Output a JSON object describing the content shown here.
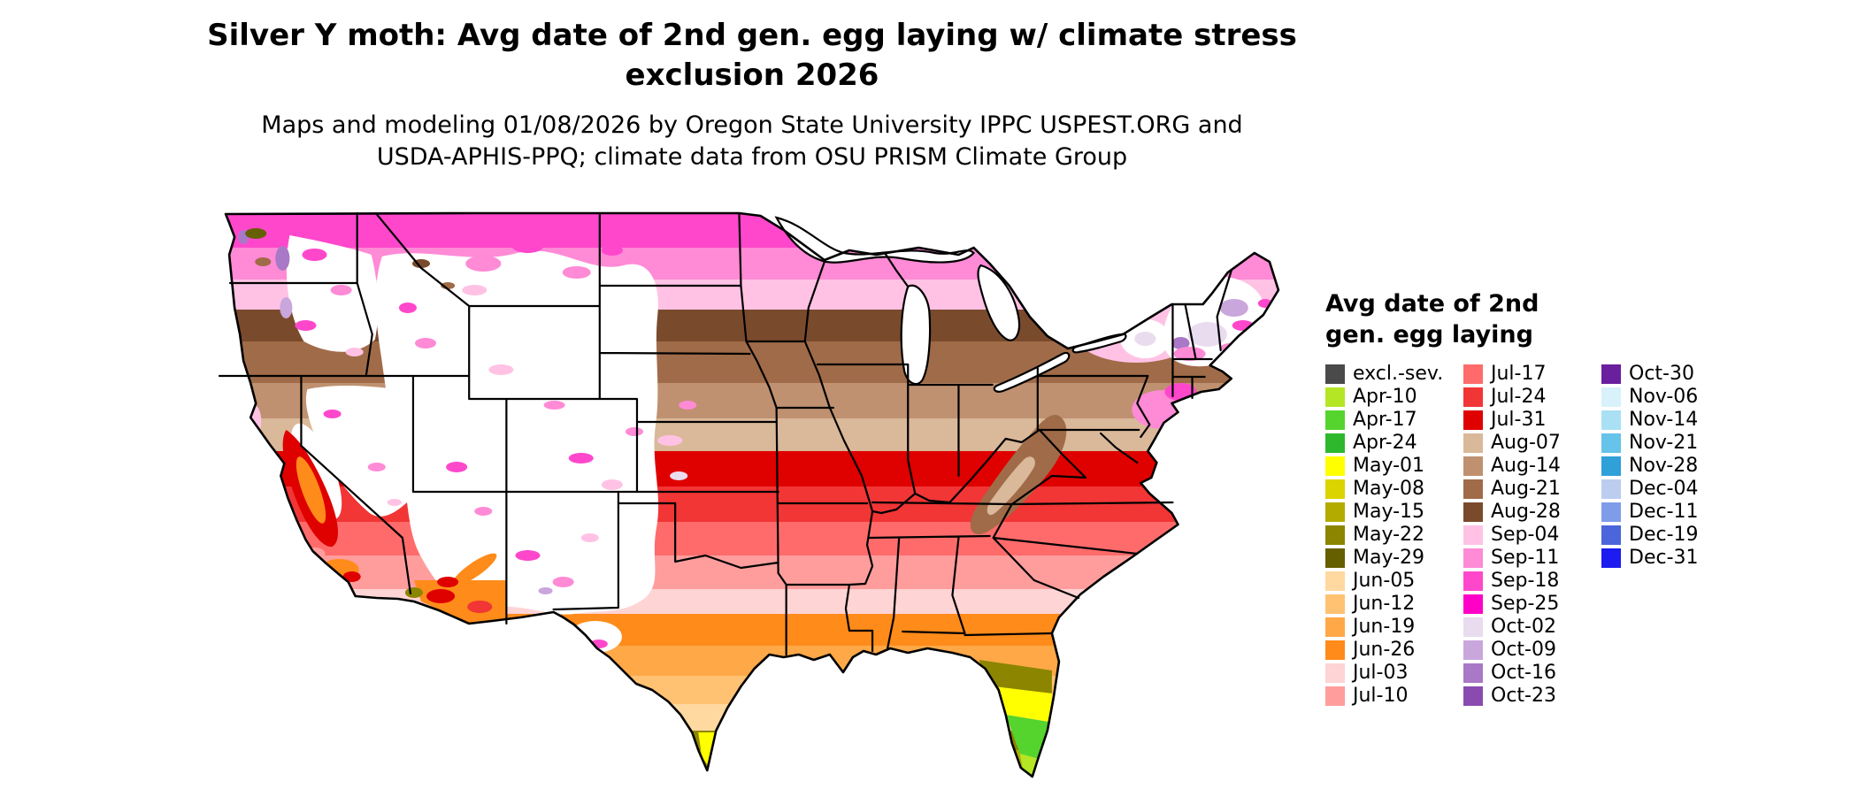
{
  "title": {
    "line1": "Silver Y moth: Avg date of 2nd gen. egg laying w/ climate stress",
    "line2": "exclusion 2026"
  },
  "subtitle": {
    "line1": "Maps and modeling 01/08/2026 by Oregon State University IPPC USPEST.ORG and",
    "line2": "USDA-APHIS-PPQ; climate data from OSU PRISM Climate Group"
  },
  "legend": {
    "title_line1": "Avg date of 2nd",
    "title_line2": "gen. egg laying",
    "columns": [
      {
        "items": [
          {
            "label": "excl.-sev.",
            "color": "#4a4a4a"
          },
          {
            "label": "Apr-10",
            "color": "#b4e626"
          },
          {
            "label": "Apr-17",
            "color": "#55d42d"
          },
          {
            "label": "Apr-24",
            "color": "#2db82d"
          },
          {
            "label": "May-01",
            "color": "#ffff00"
          },
          {
            "label": "May-08",
            "color": "#dcd400"
          },
          {
            "label": "May-15",
            "color": "#b3ab00"
          },
          {
            "label": "May-22",
            "color": "#8c8500"
          },
          {
            "label": "May-29",
            "color": "#665f00"
          },
          {
            "label": "Jun-05",
            "color": "#ffd9a0"
          },
          {
            "label": "Jun-12",
            "color": "#ffc272"
          },
          {
            "label": "Jun-19",
            "color": "#ffa847"
          },
          {
            "label": "Jun-26",
            "color": "#ff8b1a"
          },
          {
            "label": "Jul-03",
            "color": "#ffd4d4"
          },
          {
            "label": "Jul-10",
            "color": "#ff9d9d"
          }
        ]
      },
      {
        "items": [
          {
            "label": "Jul-17",
            "color": "#ff6b6b"
          },
          {
            "label": "Jul-24",
            "color": "#f23535"
          },
          {
            "label": "Jul-31",
            "color": "#df0000"
          },
          {
            "label": "Aug-07",
            "color": "#dab89a"
          },
          {
            "label": "Aug-14",
            "color": "#bf9170"
          },
          {
            "label": "Aug-21",
            "color": "#a06b48"
          },
          {
            "label": "Aug-28",
            "color": "#7a4a2d"
          },
          {
            "label": "Sep-04",
            "color": "#ffc2e5"
          },
          {
            "label": "Sep-11",
            "color": "#ff8ad6"
          },
          {
            "label": "Sep-18",
            "color": "#ff47cc"
          },
          {
            "label": "Sep-25",
            "color": "#ff00c8"
          },
          {
            "label": "Oct-02",
            "color": "#e9dcee"
          },
          {
            "label": "Oct-09",
            "color": "#c9a6dc"
          },
          {
            "label": "Oct-16",
            "color": "#a978c6"
          },
          {
            "label": "Oct-23",
            "color": "#8a4bb0"
          }
        ]
      },
      {
        "items": [
          {
            "label": "Oct-30",
            "color": "#6a1f9e"
          },
          {
            "label": "Nov-06",
            "color": "#d8f1fa"
          },
          {
            "label": "Nov-14",
            "color": "#a9e0f4"
          },
          {
            "label": "Nov-21",
            "color": "#66c3e9"
          },
          {
            "label": "Nov-28",
            "color": "#2fa0d8"
          },
          {
            "label": "Dec-04",
            "color": "#bccdf0"
          },
          {
            "label": "Dec-11",
            "color": "#7f9ce9"
          },
          {
            "label": "Dec-19",
            "color": "#4b66da"
          },
          {
            "label": "Dec-31",
            "color": "#1c1cf0"
          }
        ]
      }
    ]
  },
  "map": {
    "area_label": "Contiguous United States choropleth",
    "excluded_fill": "#ffffff",
    "border_color": "#000000",
    "background": "#ffffff"
  }
}
